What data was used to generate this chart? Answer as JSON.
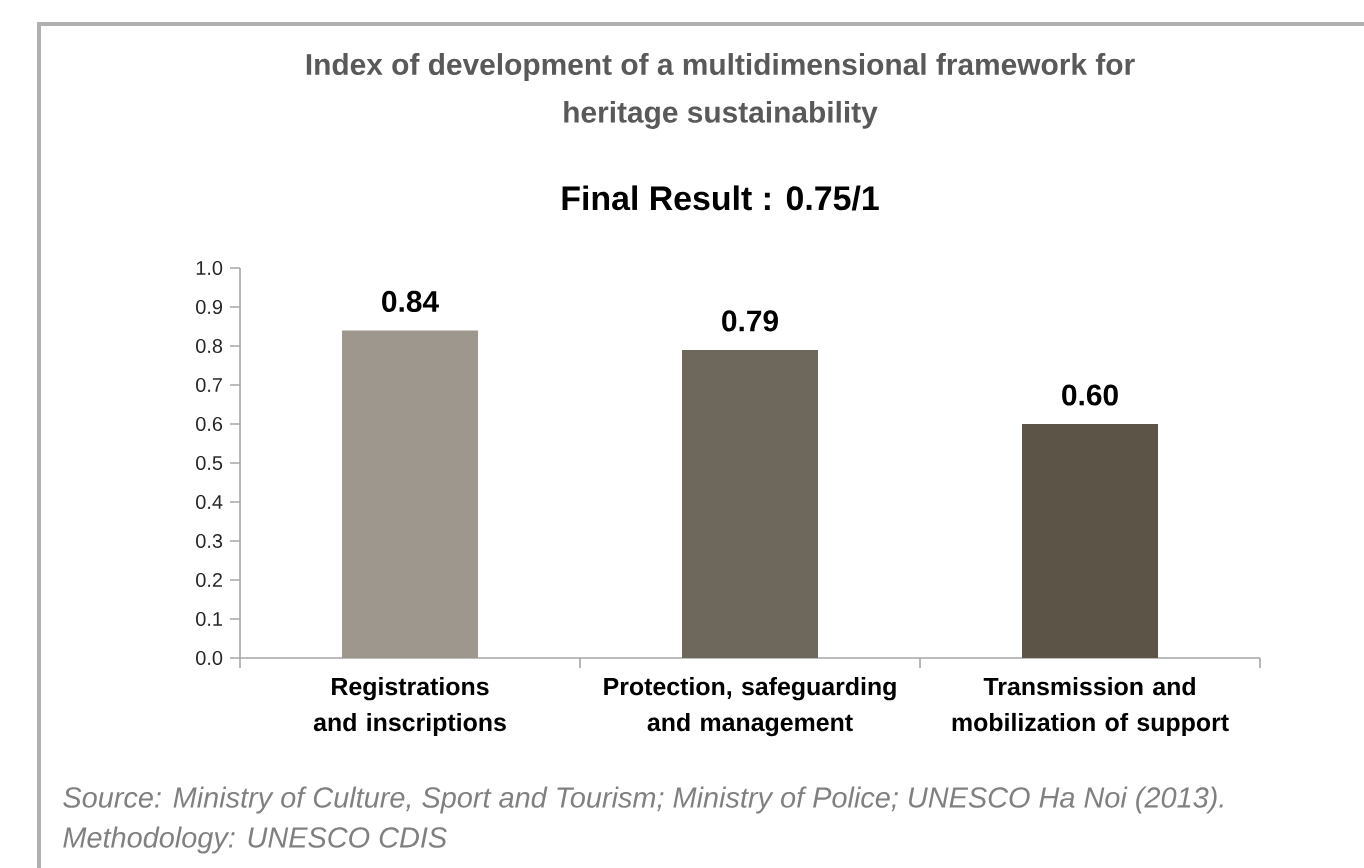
{
  "chart_data": {
    "type": "bar",
    "title": "Index of development of a multidimensional framework for heritage sustainability",
    "subtitle": "Final Result : 0.75/1",
    "categories": [
      "Registrations and inscriptions",
      "Protection, safeguarding and management",
      "Transmission and mobilization of support"
    ],
    "values": [
      0.84,
      0.79,
      0.6
    ],
    "colors": [
      "#9d978e",
      "#6e675b",
      "#5c5446"
    ],
    "value_labels": [
      "0.84",
      "0.79",
      "0.60"
    ],
    "ylim": [
      0,
      1
    ],
    "yticks": [
      {
        "value": 0,
        "label": "0.0"
      },
      0.1,
      0.2,
      0.3,
      0.4,
      0.5,
      0.6,
      0.7,
      0.8,
      0.9,
      {
        "value": 1,
        "label": "1.0"
      }
    ],
    "annotations": [
      "Source: Ministry of Culture, Sport and Tourism; Ministry of Police; UNESCO Ha Noi (2013).",
      "Methodology: UNESCO CDIS"
    ]
  }
}
